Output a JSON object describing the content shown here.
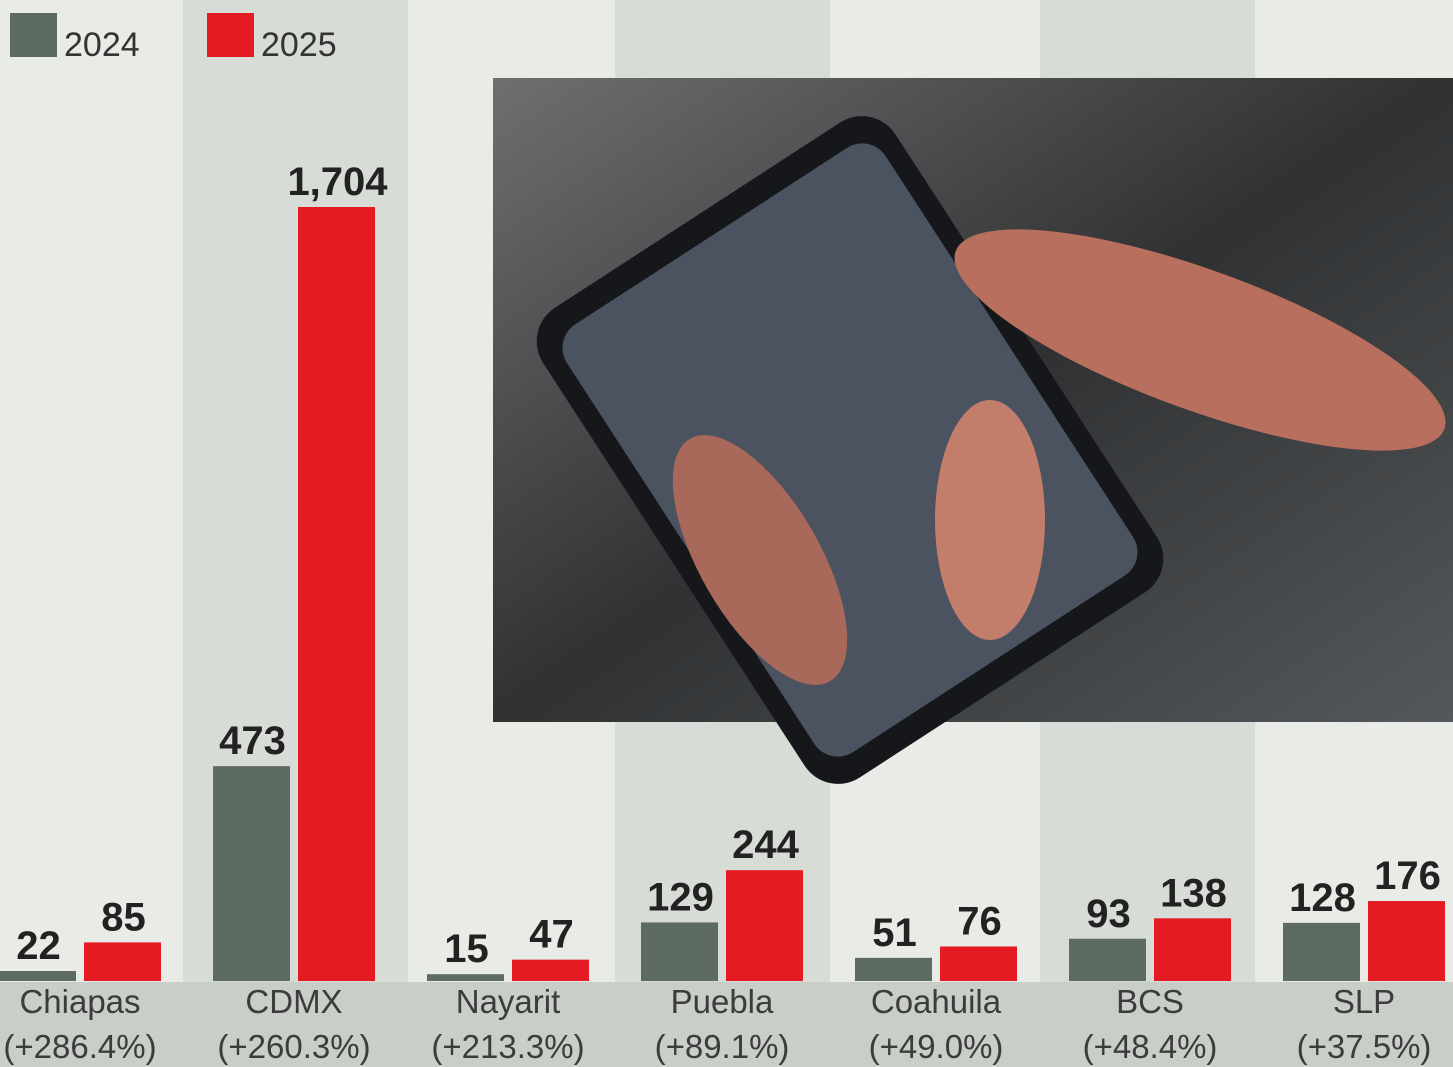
{
  "chart_data": {
    "type": "bar",
    "categories": [
      "Chiapas",
      "CDMX",
      "Nayarit",
      "Puebla",
      "Coahuila",
      "BCS",
      "SLP"
    ],
    "changes": [
      "(+286.4%)",
      "(+260.3%)",
      "(+213.3%)",
      "(+89.1%)",
      "(+49.0%)",
      "(+48.4%)",
      "(+37.5%)"
    ],
    "series": [
      {
        "name": "2024",
        "color": "#5e6b62",
        "values": [
          22,
          473,
          15,
          129,
          51,
          93,
          128
        ]
      },
      {
        "name": "2025",
        "color": "#e41b23",
        "values": [
          85,
          1704,
          47,
          244,
          76,
          138,
          176
        ],
        "value_labels": [
          "85",
          "1,704",
          "47",
          "244",
          "76",
          "138",
          "176"
        ]
      }
    ],
    "legend": "top-left"
  }
}
